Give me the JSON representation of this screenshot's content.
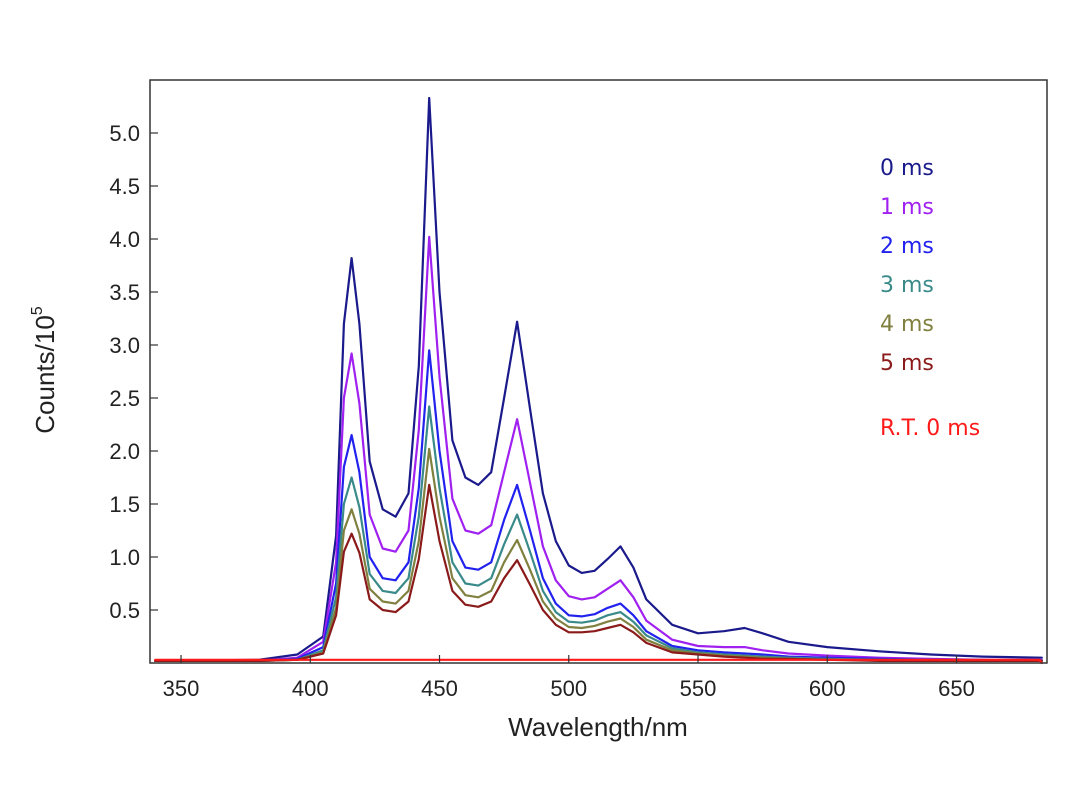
{
  "chart_data": {
    "type": "line",
    "xlabel": "Wavelength/nm",
    "ylabel_main": "Counts/10",
    "ylabel_sup": "5",
    "xlim": [
      338,
      685
    ],
    "ylim": [
      0,
      5.5
    ],
    "x_ticks": [
      350,
      400,
      450,
      500,
      550,
      600,
      650
    ],
    "y_ticks": [
      0.5,
      1.0,
      1.5,
      2.0,
      2.5,
      3.0,
      3.5,
      4.0,
      4.5,
      5.0
    ],
    "y_tick_labels": [
      "0.5",
      "1.0",
      "1.5",
      "2.0",
      "2.5",
      "3.0",
      "3.5",
      "4.0",
      "4.5",
      "5.0"
    ],
    "x_tick_labels": [
      "350",
      "400",
      "450",
      "500",
      "550",
      "600",
      "650"
    ],
    "grid": false,
    "legend_position": "top-right",
    "series": [
      {
        "name": "0 ms",
        "color": "#1a1a8c",
        "x": [
          340,
          380,
          395,
          405,
          410,
          413,
          416,
          419,
          423,
          428,
          433,
          438,
          442,
          446,
          450,
          455,
          460,
          465,
          470,
          475,
          480,
          485,
          490,
          495,
          500,
          505,
          510,
          515,
          520,
          525,
          530,
          540,
          550,
          560,
          568,
          575,
          585,
          600,
          620,
          640,
          660,
          683
        ],
        "y": [
          0.02,
          0.03,
          0.08,
          0.25,
          1.2,
          3.2,
          3.82,
          3.2,
          1.9,
          1.45,
          1.38,
          1.6,
          2.8,
          5.33,
          3.5,
          2.1,
          1.75,
          1.68,
          1.8,
          2.5,
          3.22,
          2.4,
          1.6,
          1.15,
          0.92,
          0.85,
          0.87,
          0.98,
          1.1,
          0.9,
          0.6,
          0.36,
          0.28,
          0.3,
          0.33,
          0.28,
          0.2,
          0.15,
          0.11,
          0.08,
          0.06,
          0.05
        ]
      },
      {
        "name": "1 ms",
        "color": "#a020f0",
        "x": [
          340,
          380,
          395,
          405,
          410,
          413,
          416,
          419,
          423,
          428,
          433,
          438,
          442,
          446,
          450,
          455,
          460,
          465,
          470,
          475,
          480,
          485,
          490,
          495,
          500,
          505,
          510,
          515,
          520,
          525,
          530,
          540,
          550,
          560,
          568,
          575,
          585,
          600,
          620,
          640,
          660,
          683
        ],
        "y": [
          0.02,
          0.02,
          0.05,
          0.2,
          0.95,
          2.5,
          2.92,
          2.45,
          1.4,
          1.08,
          1.05,
          1.25,
          2.2,
          4.02,
          2.7,
          1.55,
          1.25,
          1.22,
          1.3,
          1.8,
          2.3,
          1.7,
          1.1,
          0.78,
          0.63,
          0.6,
          0.62,
          0.7,
          0.78,
          0.62,
          0.4,
          0.22,
          0.16,
          0.15,
          0.15,
          0.12,
          0.09,
          0.07,
          0.05,
          0.04,
          0.03,
          0.03
        ]
      },
      {
        "name": "2 ms",
        "color": "#2222ee",
        "x": [
          340,
          380,
          395,
          405,
          410,
          413,
          416,
          419,
          423,
          428,
          433,
          438,
          442,
          446,
          450,
          455,
          460,
          465,
          470,
          475,
          480,
          485,
          490,
          495,
          500,
          505,
          510,
          515,
          520,
          525,
          530,
          540,
          550,
          560,
          568,
          575,
          585,
          600,
          620,
          640,
          660,
          683
        ],
        "y": [
          0.02,
          0.02,
          0.04,
          0.15,
          0.75,
          1.85,
          2.15,
          1.8,
          1.0,
          0.8,
          0.78,
          0.95,
          1.65,
          2.95,
          2.0,
          1.15,
          0.9,
          0.88,
          0.95,
          1.35,
          1.68,
          1.25,
          0.8,
          0.56,
          0.45,
          0.44,
          0.46,
          0.52,
          0.56,
          0.45,
          0.3,
          0.16,
          0.12,
          0.1,
          0.09,
          0.08,
          0.06,
          0.05,
          0.04,
          0.03,
          0.03,
          0.02
        ]
      },
      {
        "name": "3 ms",
        "color": "#3a8a8a",
        "x": [
          340,
          380,
          395,
          405,
          410,
          413,
          416,
          419,
          423,
          428,
          433,
          438,
          442,
          446,
          450,
          455,
          460,
          465,
          470,
          475,
          480,
          485,
          490,
          495,
          500,
          505,
          510,
          515,
          520,
          525,
          530,
          540,
          550,
          560,
          568,
          575,
          585,
          600,
          620,
          640,
          660,
          683
        ],
        "y": [
          0.02,
          0.02,
          0.03,
          0.12,
          0.62,
          1.5,
          1.75,
          1.47,
          0.84,
          0.68,
          0.66,
          0.8,
          1.38,
          2.42,
          1.65,
          0.95,
          0.75,
          0.73,
          0.8,
          1.12,
          1.4,
          1.05,
          0.68,
          0.48,
          0.39,
          0.38,
          0.4,
          0.45,
          0.48,
          0.39,
          0.26,
          0.14,
          0.1,
          0.08,
          0.07,
          0.06,
          0.05,
          0.04,
          0.03,
          0.03,
          0.02,
          0.02
        ]
      },
      {
        "name": "4 ms",
        "color": "#808040",
        "x": [
          340,
          380,
          395,
          405,
          410,
          413,
          416,
          419,
          423,
          428,
          433,
          438,
          442,
          446,
          450,
          455,
          460,
          465,
          470,
          475,
          480,
          485,
          490,
          495,
          500,
          505,
          510,
          515,
          520,
          525,
          530,
          540,
          550,
          560,
          568,
          575,
          585,
          600,
          620,
          640,
          660,
          683
        ],
        "y": [
          0.02,
          0.02,
          0.03,
          0.1,
          0.52,
          1.25,
          1.45,
          1.22,
          0.7,
          0.58,
          0.56,
          0.68,
          1.15,
          2.02,
          1.38,
          0.8,
          0.64,
          0.62,
          0.68,
          0.95,
          1.16,
          0.88,
          0.58,
          0.42,
          0.34,
          0.33,
          0.35,
          0.39,
          0.42,
          0.34,
          0.22,
          0.12,
          0.09,
          0.07,
          0.06,
          0.05,
          0.04,
          0.03,
          0.03,
          0.02,
          0.02,
          0.02
        ]
      },
      {
        "name": "5 ms",
        "color": "#8b1a1a",
        "x": [
          340,
          380,
          395,
          405,
          410,
          413,
          416,
          419,
          423,
          428,
          433,
          438,
          442,
          446,
          450,
          455,
          460,
          465,
          470,
          475,
          480,
          485,
          490,
          495,
          500,
          505,
          510,
          515,
          520,
          525,
          530,
          540,
          550,
          560,
          568,
          575,
          585,
          600,
          620,
          640,
          660,
          683
        ],
        "y": [
          0.02,
          0.02,
          0.03,
          0.09,
          0.45,
          1.05,
          1.22,
          1.04,
          0.6,
          0.5,
          0.48,
          0.58,
          0.98,
          1.68,
          1.15,
          0.68,
          0.55,
          0.53,
          0.58,
          0.8,
          0.97,
          0.74,
          0.5,
          0.36,
          0.29,
          0.29,
          0.3,
          0.33,
          0.36,
          0.29,
          0.19,
          0.1,
          0.08,
          0.06,
          0.05,
          0.04,
          0.04,
          0.03,
          0.02,
          0.02,
          0.02,
          0.02
        ]
      },
      {
        "name": "R.T. 0 ms",
        "color": "#ff1a1a",
        "x": [
          340,
          400,
          500,
          600,
          682,
          683
        ],
        "y": [
          0.03,
          0.03,
          0.03,
          0.03,
          0.03,
          0.0
        ]
      }
    ]
  }
}
